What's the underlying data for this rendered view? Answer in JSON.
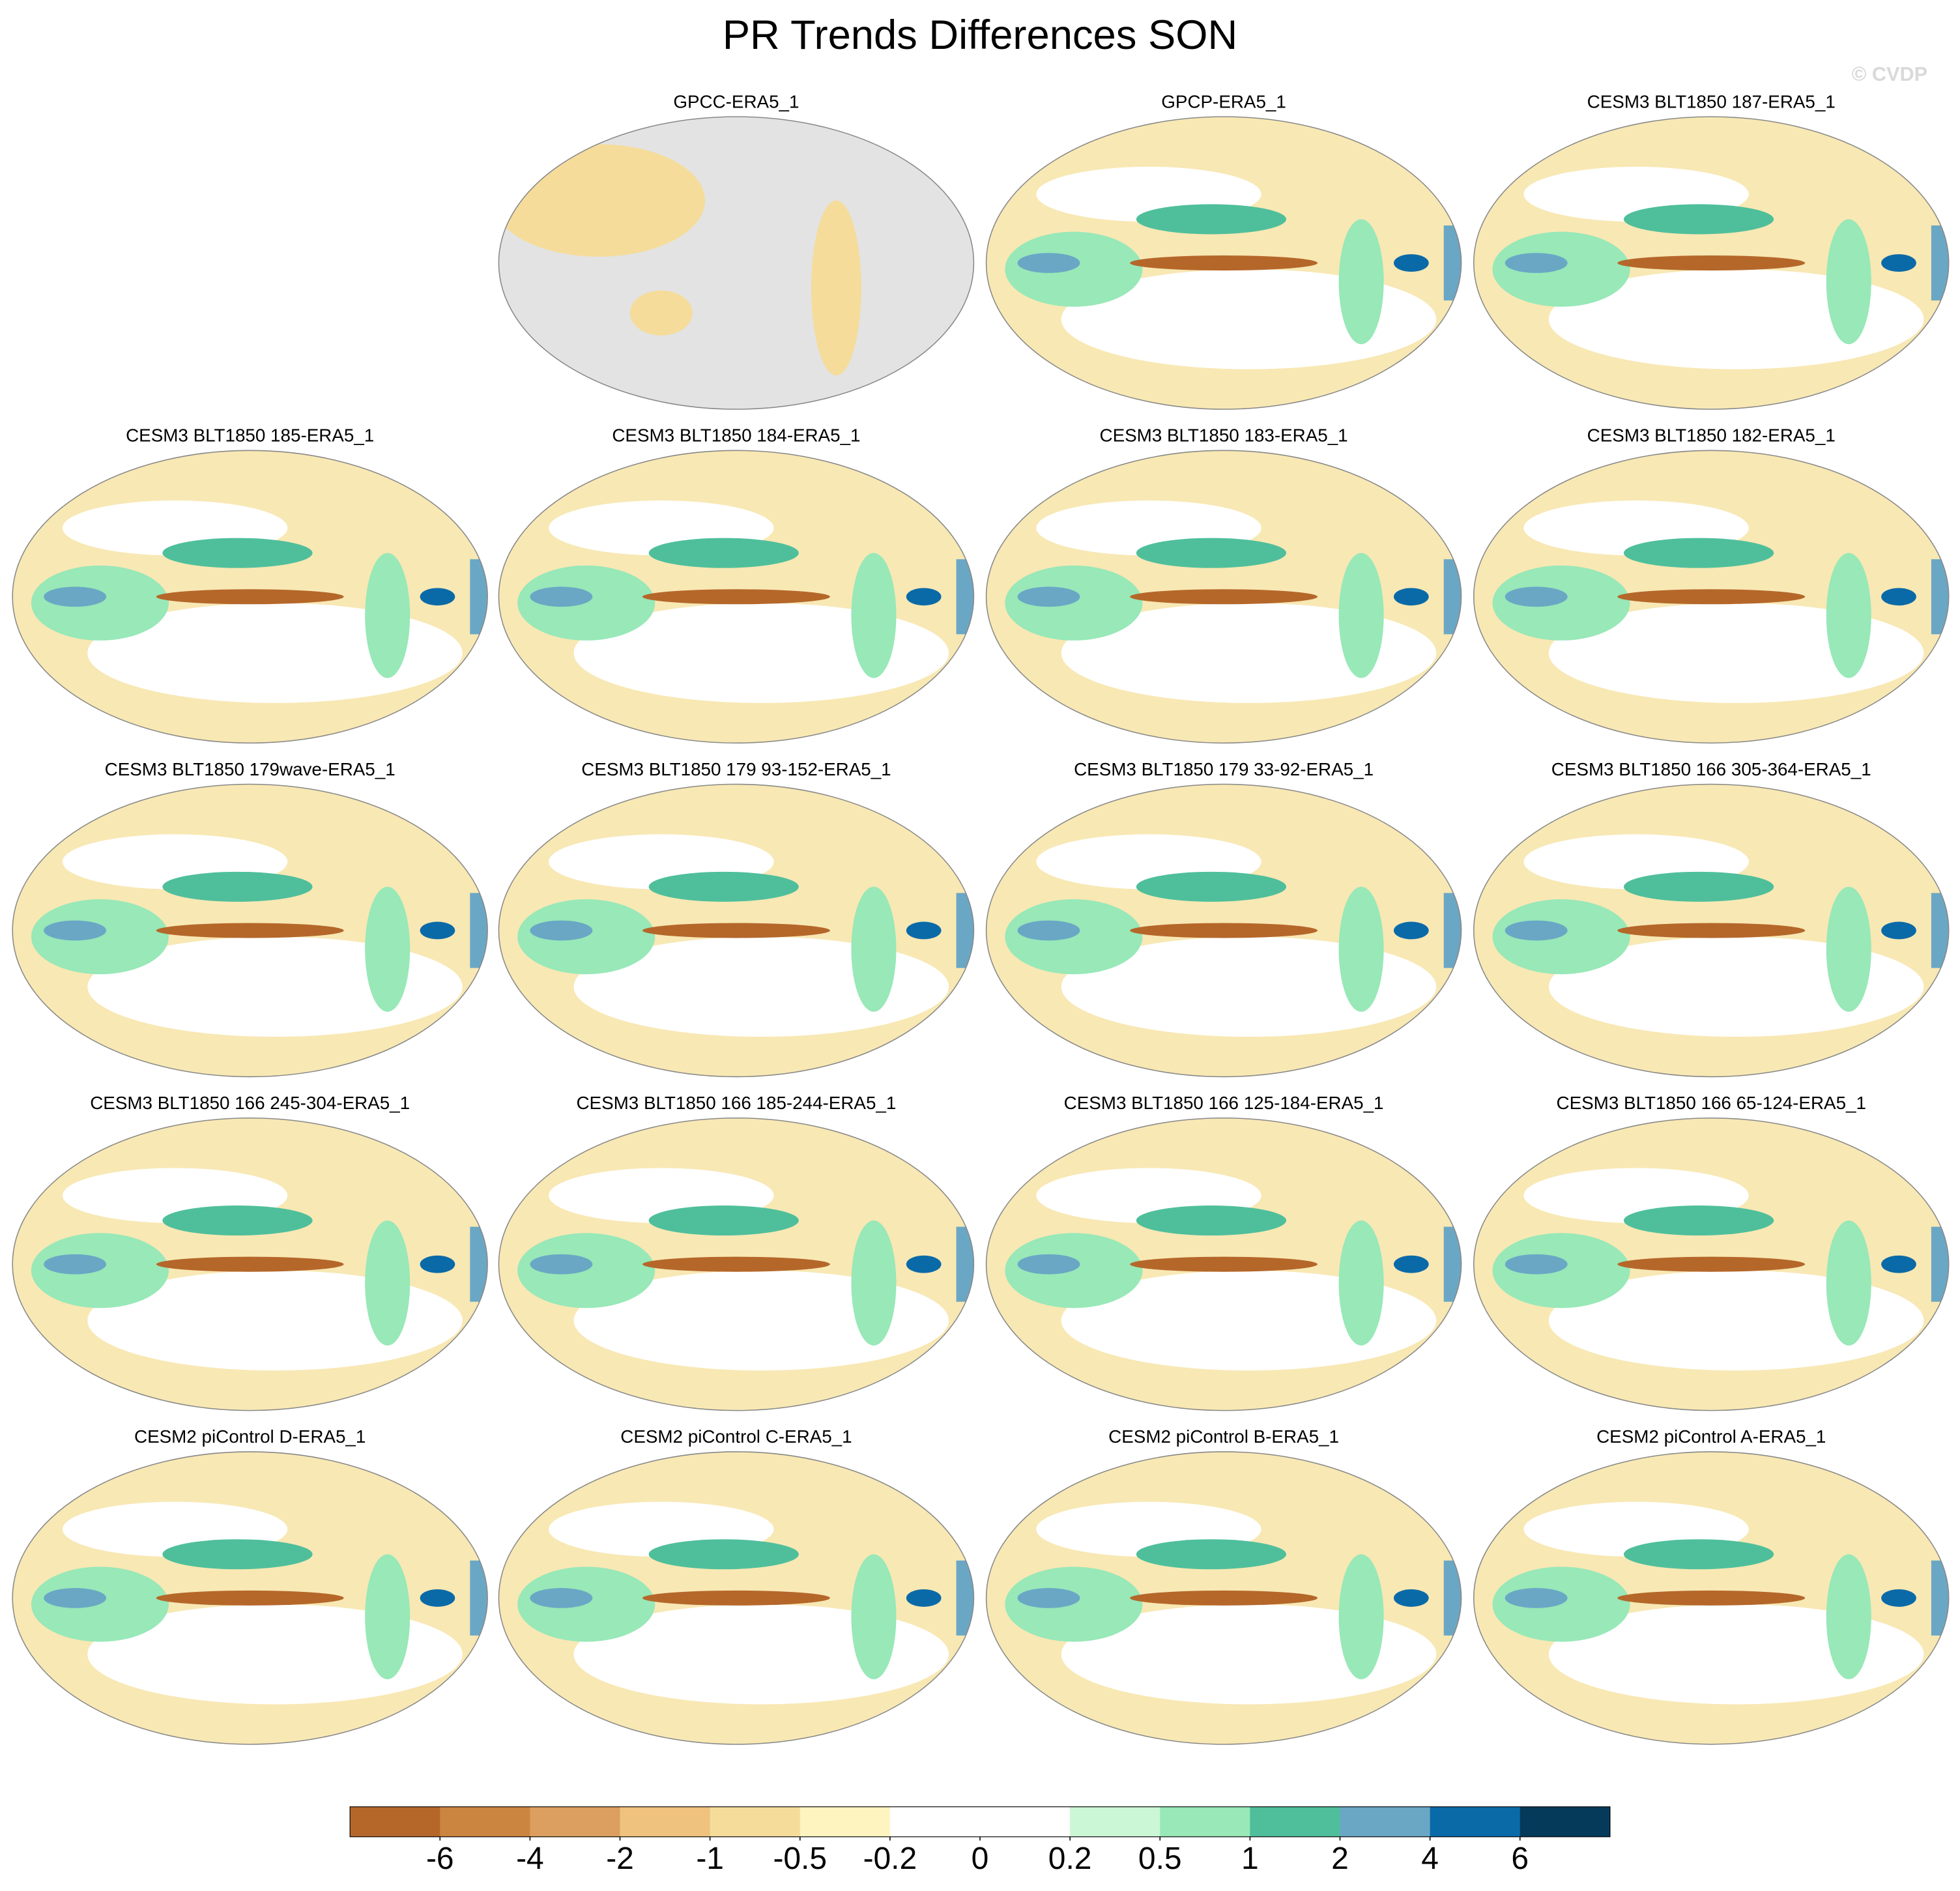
{
  "title": "PR Trends Differences SON",
  "watermark": "© CVDP",
  "panels": [
    "GPCC-ERA5_1",
    "GPCP-ERA5_1",
    "CESM3 BLT1850 187-ERA5_1",
    "CESM3 BLT1850 185-ERA5_1",
    "CESM3 BLT1850 184-ERA5_1",
    "CESM3 BLT1850 183-ERA5_1",
    "CESM3 BLT1850 182-ERA5_1",
    "CESM3 BLT1850 179wave-ERA5_1",
    "CESM3 BLT1850 179 93-152-ERA5_1",
    "CESM3 BLT1850 179 33-92-ERA5_1",
    "CESM3 BLT1850 166 305-364-ERA5_1",
    "CESM3 BLT1850 166 245-304-ERA5_1",
    "CESM3 BLT1850 166 185-244-ERA5_1",
    "CESM3 BLT1850 166 125-184-ERA5_1",
    "CESM3 BLT1850 166 65-124-ERA5_1",
    "CESM2 piControl D-ERA5_1",
    "CESM2 piControl C-ERA5_1",
    "CESM2 piControl B-ERA5_1",
    "CESM2 piControl A-ERA5_1"
  ],
  "colorbar": {
    "levels": [
      -6,
      -4,
      -2,
      -1,
      -0.5,
      -0.2,
      0,
      0.2,
      0.5,
      1,
      2,
      4,
      6
    ],
    "colors": [
      "#b5672a",
      "#cc8540",
      "#dc9f5f",
      "#efc27e",
      "#f5dc9a",
      "#fdf4c0",
      "#ffffff",
      "#ffffff",
      "#cbf7d6",
      "#98e8b8",
      "#4fbf9b",
      "#6aa7c5",
      "#0a6aa8",
      "#063a5a"
    ]
  }
}
